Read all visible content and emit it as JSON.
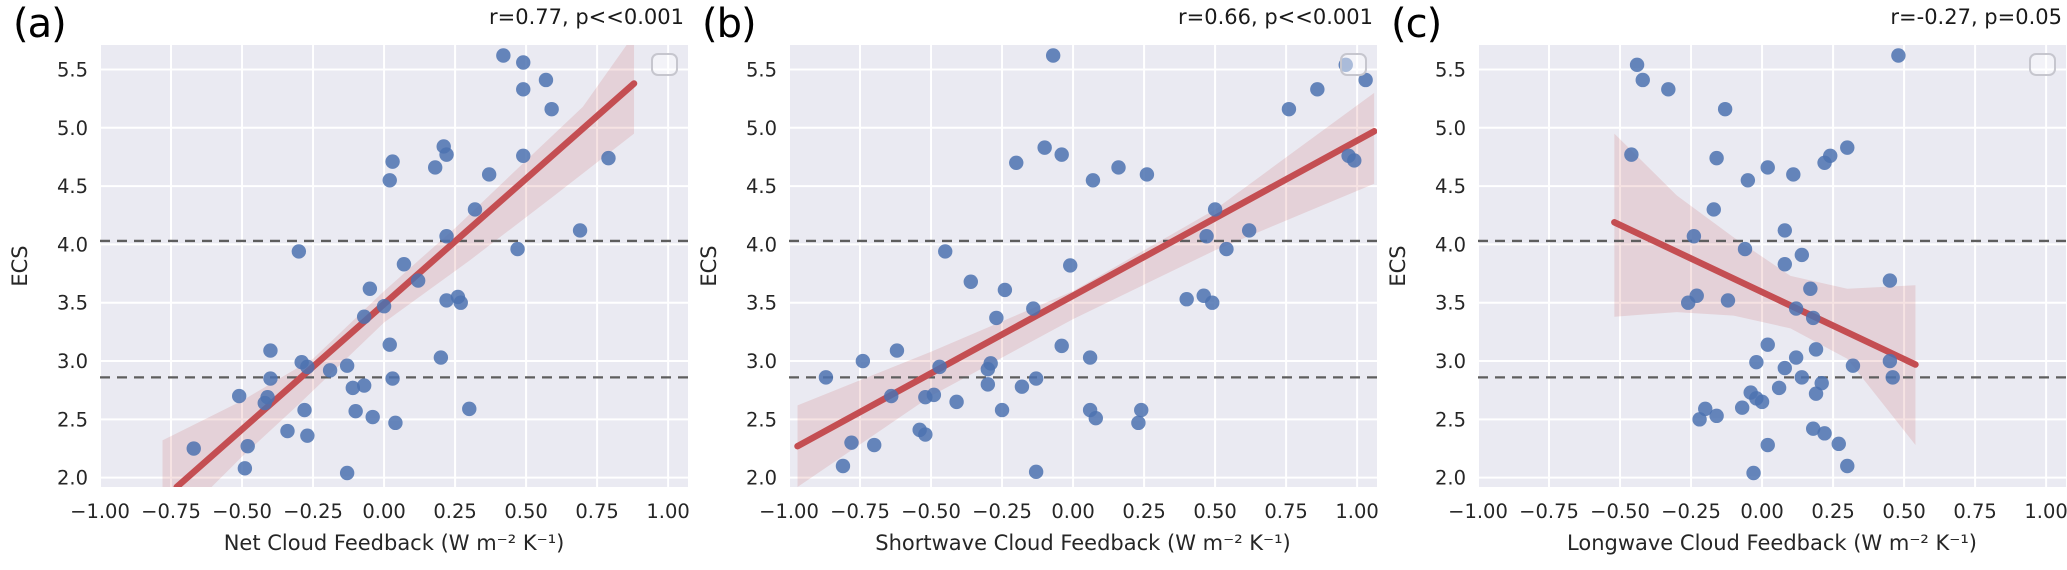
{
  "figure": {
    "colors": {
      "panel_background": "#eaeaf2",
      "gridline": "#ffffff",
      "scatter_point": "#4c72b0",
      "regression_line": "#c44e52",
      "confidence_band": "#c44e52",
      "dashed_reference": "#5e5e5e",
      "legend_box_border": "#c6c6ce",
      "text": "#262626"
    },
    "x_tick_labels": [
      "−1.00",
      "−0.75",
      "−0.50",
      "−0.25",
      "0.00",
      "0.25",
      "0.50",
      "0.75",
      "1.00"
    ],
    "x_tick_values": [
      -1.0,
      -0.75,
      -0.5,
      -0.25,
      0.0,
      0.25,
      0.5,
      0.75,
      1.0
    ],
    "y_tick_labels": [
      "2.0",
      "2.5",
      "3.0",
      "3.5",
      "4.0",
      "4.5",
      "5.0",
      "5.5"
    ],
    "y_tick_values": [
      2.0,
      2.5,
      3.0,
      3.5,
      4.0,
      4.5,
      5.0,
      5.5
    ]
  },
  "chart_data": [
    {
      "type": "scatter",
      "panel_label": "(a)",
      "annotation": "r=0.77, p<<0.001",
      "r": 0.77,
      "p": "<<0.001",
      "xlabel": "Net Cloud Feedback (W m⁻² K⁻¹)",
      "ylabel": "ECS",
      "xlim": [
        -1.0,
        1.07
      ],
      "ylim": [
        1.92,
        5.71
      ],
      "grid": true,
      "legend": "empty-box-top-right",
      "hlines": [
        4.03,
        2.86
      ],
      "regression": [
        [
          -0.73,
          1.92
        ],
        [
          0.88,
          5.38
        ]
      ],
      "band": [
        [
          -0.78,
          2.32
        ],
        [
          -0.5,
          2.66
        ],
        [
          -0.25,
          3.02
        ],
        [
          0.0,
          3.6
        ],
        [
          0.25,
          4.14
        ],
        [
          0.5,
          4.72
        ],
        [
          0.7,
          5.18
        ],
        [
          0.88,
          5.8
        ],
        [
          0.88,
          4.95
        ],
        [
          0.6,
          4.42
        ],
        [
          0.3,
          3.86
        ],
        [
          0.0,
          3.33
        ],
        [
          -0.3,
          2.63
        ],
        [
          -0.5,
          2.18
        ],
        [
          -0.78,
          1.5
        ]
      ],
      "points": [
        [
          0.42,
          5.62
        ],
        [
          0.49,
          5.56
        ],
        [
          0.57,
          5.41
        ],
        [
          0.49,
          5.33
        ],
        [
          0.59,
          5.16
        ],
        [
          0.21,
          4.84
        ],
        [
          0.22,
          4.77
        ],
        [
          0.49,
          4.76
        ],
        [
          0.79,
          4.74
        ],
        [
          0.03,
          4.71
        ],
        [
          0.18,
          4.66
        ],
        [
          0.37,
          4.6
        ],
        [
          0.02,
          4.55
        ],
        [
          0.32,
          4.3
        ],
        [
          0.69,
          4.12
        ],
        [
          0.22,
          4.07
        ],
        [
          0.47,
          3.96
        ],
        [
          -0.3,
          3.94
        ],
        [
          0.07,
          3.83
        ],
        [
          0.12,
          3.69
        ],
        [
          -0.05,
          3.62
        ],
        [
          0.26,
          3.55
        ],
        [
          0.22,
          3.52
        ],
        [
          0.27,
          3.5
        ],
        [
          0.0,
          3.47
        ],
        [
          -0.07,
          3.38
        ],
        [
          0.02,
          3.14
        ],
        [
          -0.4,
          3.09
        ],
        [
          0.2,
          3.03
        ],
        [
          -0.29,
          2.99
        ],
        [
          -0.27,
          2.95
        ],
        [
          -0.13,
          2.96
        ],
        [
          -0.19,
          2.92
        ],
        [
          0.03,
          2.85
        ],
        [
          -0.4,
          2.85
        ],
        [
          -0.07,
          2.79
        ],
        [
          -0.11,
          2.77
        ],
        [
          -0.51,
          2.7
        ],
        [
          -0.41,
          2.69
        ],
        [
          -0.42,
          2.64
        ],
        [
          -0.28,
          2.58
        ],
        [
          -0.1,
          2.57
        ],
        [
          0.3,
          2.59
        ],
        [
          -0.04,
          2.52
        ],
        [
          0.04,
          2.47
        ],
        [
          -0.34,
          2.4
        ],
        [
          -0.27,
          2.36
        ],
        [
          -0.48,
          2.27
        ],
        [
          -0.67,
          2.25
        ],
        [
          -0.49,
          2.08
        ],
        [
          -0.13,
          2.04
        ]
      ]
    },
    {
      "type": "scatter",
      "panel_label": "(b)",
      "annotation": "r=0.66, p<<0.001",
      "r": 0.66,
      "p": "<<0.001",
      "xlabel": "Shortwave Cloud Feedback (W m⁻² K⁻¹)",
      "ylabel": "ECS",
      "xlim": [
        -1.0,
        1.07
      ],
      "ylim": [
        1.92,
        5.71
      ],
      "grid": true,
      "legend": "empty-box-top-right",
      "hlines": [
        4.03,
        2.86
      ],
      "regression": [
        [
          -0.97,
          2.27
        ],
        [
          1.06,
          4.97
        ]
      ],
      "band": [
        [
          -0.97,
          2.62
        ],
        [
          -0.5,
          3.08
        ],
        [
          0.0,
          3.6
        ],
        [
          0.5,
          4.3
        ],
        [
          1.06,
          5.3
        ],
        [
          1.06,
          4.52
        ],
        [
          0.5,
          3.95
        ],
        [
          0.0,
          3.36
        ],
        [
          -0.5,
          2.7
        ],
        [
          -0.97,
          1.92
        ]
      ],
      "points": [
        [
          -0.07,
          5.62
        ],
        [
          0.96,
          5.54
        ],
        [
          1.03,
          5.41
        ],
        [
          0.86,
          5.33
        ],
        [
          0.76,
          5.16
        ],
        [
          -0.1,
          4.83
        ],
        [
          -0.04,
          4.77
        ],
        [
          0.97,
          4.76
        ],
        [
          0.99,
          4.72
        ],
        [
          -0.2,
          4.7
        ],
        [
          0.16,
          4.66
        ],
        [
          0.26,
          4.6
        ],
        [
          0.07,
          4.55
        ],
        [
          0.5,
          4.3
        ],
        [
          0.62,
          4.12
        ],
        [
          0.47,
          4.07
        ],
        [
          0.54,
          3.96
        ],
        [
          -0.45,
          3.94
        ],
        [
          -0.01,
          3.82
        ],
        [
          -0.36,
          3.68
        ],
        [
          -0.24,
          3.61
        ],
        [
          0.46,
          3.56
        ],
        [
          0.4,
          3.53
        ],
        [
          0.49,
          3.5
        ],
        [
          -0.14,
          3.45
        ],
        [
          -0.27,
          3.37
        ],
        [
          -0.04,
          3.13
        ],
        [
          -0.62,
          3.09
        ],
        [
          0.06,
          3.03
        ],
        [
          -0.74,
          3.0
        ],
        [
          -0.29,
          2.98
        ],
        [
          -0.3,
          2.93
        ],
        [
          -0.47,
          2.95
        ],
        [
          -0.87,
          2.86
        ],
        [
          -0.13,
          2.85
        ],
        [
          -0.3,
          2.8
        ],
        [
          -0.18,
          2.78
        ],
        [
          -0.64,
          2.7
        ],
        [
          -0.49,
          2.71
        ],
        [
          -0.52,
          2.69
        ],
        [
          -0.41,
          2.65
        ],
        [
          -0.25,
          2.58
        ],
        [
          0.06,
          2.58
        ],
        [
          0.24,
          2.58
        ],
        [
          0.08,
          2.51
        ],
        [
          0.23,
          2.47
        ],
        [
          -0.54,
          2.41
        ],
        [
          -0.52,
          2.37
        ],
        [
          -0.78,
          2.3
        ],
        [
          -0.7,
          2.28
        ],
        [
          -0.81,
          2.1
        ],
        [
          -0.13,
          2.05
        ]
      ]
    },
    {
      "type": "scatter",
      "panel_label": "(c)",
      "annotation": "r=-0.27, p=0.05",
      "r": -0.27,
      "p": "=0.05",
      "xlabel": "Longwave Cloud Feedback (W m⁻² K⁻¹)",
      "ylabel": "ECS",
      "xlim": [
        -1.0,
        1.07
      ],
      "ylim": [
        1.92,
        5.71
      ],
      "grid": true,
      "legend": "empty-box-top-right",
      "hlines": [
        4.03,
        2.86
      ],
      "regression": [
        [
          -0.52,
          4.19
        ],
        [
          0.54,
          2.97
        ]
      ],
      "band": [
        [
          -0.52,
          4.95
        ],
        [
          -0.3,
          4.42
        ],
        [
          -0.1,
          4.06
        ],
        [
          0.1,
          3.73
        ],
        [
          0.3,
          3.62
        ],
        [
          0.54,
          3.65
        ],
        [
          0.54,
          2.28
        ],
        [
          0.3,
          3.02
        ],
        [
          0.1,
          3.28
        ],
        [
          -0.1,
          3.39
        ],
        [
          -0.3,
          3.42
        ],
        [
          -0.52,
          3.38
        ]
      ],
      "points": [
        [
          0.48,
          5.62
        ],
        [
          -0.44,
          5.54
        ],
        [
          -0.42,
          5.41
        ],
        [
          -0.33,
          5.33
        ],
        [
          -0.13,
          5.16
        ],
        [
          0.3,
          4.83
        ],
        [
          -0.46,
          4.77
        ],
        [
          0.24,
          4.76
        ],
        [
          0.22,
          4.7
        ],
        [
          -0.16,
          4.74
        ],
        [
          0.02,
          4.66
        ],
        [
          0.11,
          4.6
        ],
        [
          -0.05,
          4.55
        ],
        [
          -0.17,
          4.3
        ],
        [
          0.08,
          4.12
        ],
        [
          -0.24,
          4.07
        ],
        [
          -0.06,
          3.96
        ],
        [
          0.14,
          3.91
        ],
        [
          0.08,
          3.83
        ],
        [
          0.45,
          3.69
        ],
        [
          0.17,
          3.62
        ],
        [
          -0.23,
          3.56
        ],
        [
          -0.12,
          3.52
        ],
        [
          -0.26,
          3.5
        ],
        [
          0.12,
          3.45
        ],
        [
          0.18,
          3.37
        ],
        [
          0.02,
          3.14
        ],
        [
          0.19,
          3.1
        ],
        [
          0.12,
          3.03
        ],
        [
          0.45,
          3.0
        ],
        [
          -0.02,
          2.99
        ],
        [
          0.08,
          2.94
        ],
        [
          0.32,
          2.96
        ],
        [
          0.46,
          2.86
        ],
        [
          0.14,
          2.86
        ],
        [
          0.21,
          2.81
        ],
        [
          0.06,
          2.77
        ],
        [
          -0.04,
          2.73
        ],
        [
          0.19,
          2.72
        ],
        [
          -0.02,
          2.68
        ],
        [
          0.0,
          2.65
        ],
        [
          -0.07,
          2.6
        ],
        [
          -0.2,
          2.59
        ],
        [
          -0.16,
          2.53
        ],
        [
          -0.22,
          2.5
        ],
        [
          0.18,
          2.42
        ],
        [
          0.22,
          2.38
        ],
        [
          0.27,
          2.29
        ],
        [
          0.02,
          2.28
        ],
        [
          0.3,
          2.1
        ],
        [
          -0.03,
          2.04
        ]
      ]
    }
  ]
}
